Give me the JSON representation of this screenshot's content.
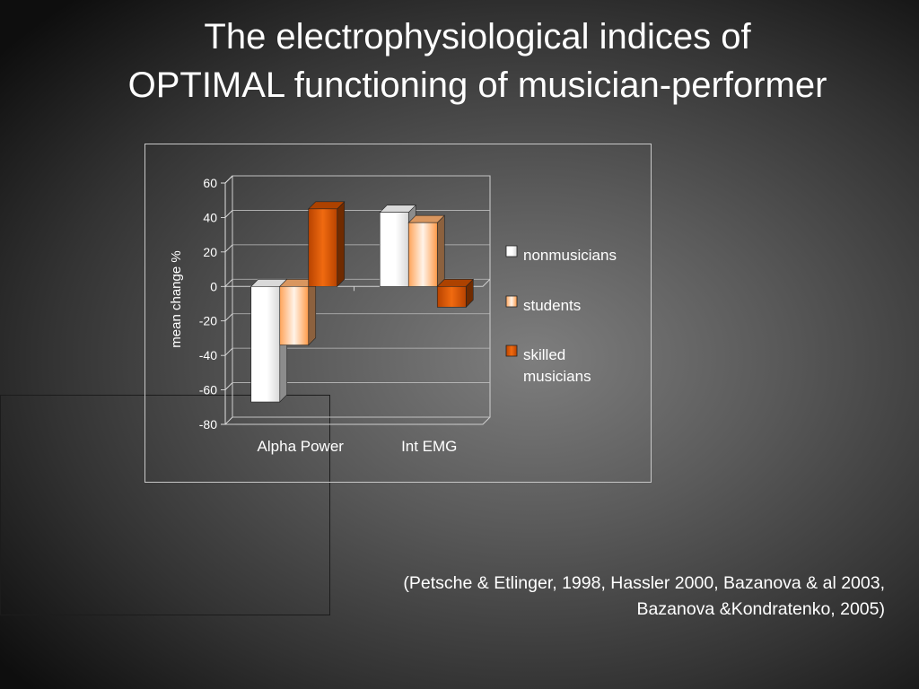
{
  "title": {
    "line1": "The electrophysiological indices of",
    "line2": "OPTIMAL functioning of musician-performer"
  },
  "citation": {
    "line1": "(Petsche & Etlinger, 1998, Hassler  2000, Bazanova & al 2003,",
    "line2": "Bazanova &Kondratenko, 2005)"
  },
  "chart_data": {
    "type": "bar",
    "three_d": true,
    "categories": [
      "Alpha Power",
      "Int EMG"
    ],
    "series": [
      {
        "name": "nonmusicians",
        "values": [
          -67,
          43
        ],
        "color": "#ffffff"
      },
      {
        "name": "students",
        "values": [
          -34,
          37
        ],
        "color": "#ffb070"
      },
      {
        "name": "skilled musicians",
        "values": [
          45,
          -12
        ],
        "color": "#cc4e00"
      }
    ],
    "ylabel": "mean change %",
    "ylim": [
      -80,
      60
    ],
    "yticks": [
      60,
      40,
      20,
      0,
      -20,
      -40,
      -60,
      -80
    ],
    "legend_position": "right",
    "grid": true
  }
}
